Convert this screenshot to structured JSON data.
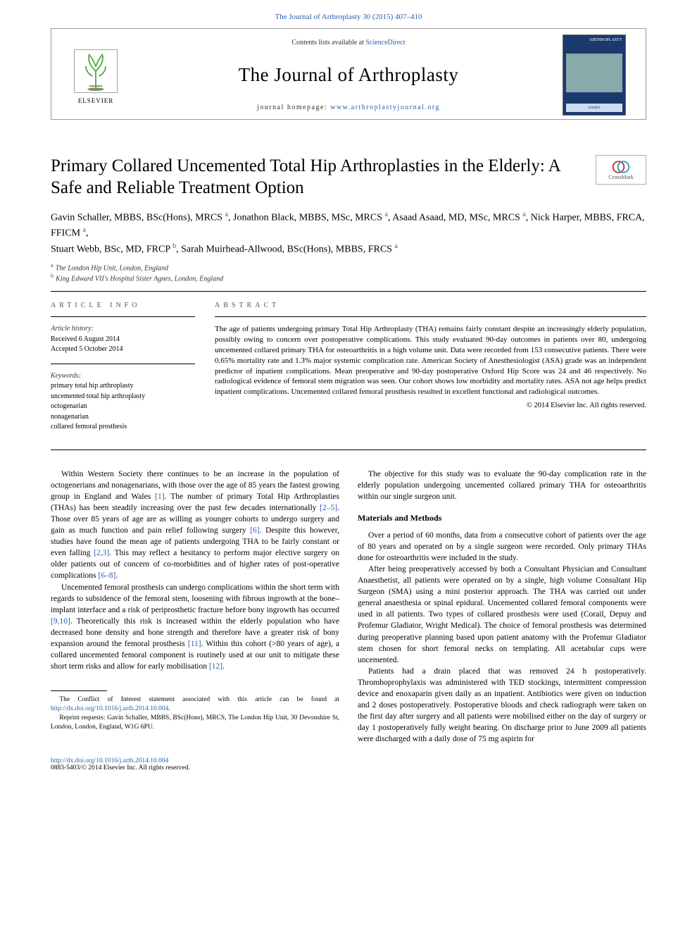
{
  "header": {
    "top_link": "The Journal of Arthroplasty 30 (2015) 407–410",
    "contents": "Contents lists available at ",
    "contents_link": "ScienceDirect",
    "journal_name": "The Journal of Arthroplasty",
    "homepage_label": "journal homepage: ",
    "homepage_url": "www.arthroplastyjournal.org",
    "elsevier": "ELSEVIER",
    "cover_title": "ARTHROPLASTY",
    "cover_foot": "AAHKS"
  },
  "article": {
    "title": "Primary Collared Uncemented Total Hip Arthroplasties in the Elderly: A Safe and Reliable Treatment Option",
    "crossmark": "CrossMark",
    "authors_html": "Gavin Schaller, MBBS, BSc(Hons), MRCS <sup>a</sup>, Jonathon Black, MBBS, MSc, MRCS <sup>a</sup>, Asaad Asaad, MD, MSc, MRCS <sup>a</sup>, Nick Harper, MBBS, FRCA, FFICM <sup>a</sup>,<br>Stuart Webb, BSc, MD, FRCP <sup>b</sup>, Sarah Muirhead-Allwood, BSc(Hons), MBBS, FRCS <sup>a</sup>",
    "affiliations": [
      {
        "sup": "a",
        "text": "The London Hip Unit, London, England"
      },
      {
        "sup": "b",
        "text": "King Edward VII's Hospital Sister Agnes, London, England"
      }
    ],
    "info_heading": "article info",
    "abstract_heading": "abstract",
    "history_label": "Article history:",
    "received": "Received 6 August 2014",
    "accepted": "Accepted 5 October 2014",
    "keywords_label": "Keywords:",
    "keywords": [
      "primary total hip arthroplasty",
      "uncemented total hip arthroplasty",
      "octogenarian",
      "nonagenarian",
      "collared femoral prosthesis"
    ],
    "abstract": "The age of patients undergoing primary Total Hip Arthroplasty (THA) remains fairly constant despite an increasingly elderly population, possibly owing to concern over postoperative complications. This study evaluated 90-day outcomes in patients over 80, undergoing uncemented collared primary THA for osteoarthritis in a high volume unit. Data were recorded from 153 consecutive patients. There were 0.65% mortality rate and 1.3% major systemic complication rate. American Society of Anesthesiologist (ASA) grade was an independent predictor of inpatient complications. Mean preoperative and 90-day postoperative Oxford Hip Score was 24 and 46 respectively. No radiological evidence of femoral stem migration was seen. Our cohort shows low morbidity and mortality rates. ASA not age helps predict inpatient complications. Uncemented collared femoral prosthesis resulted in excellent functional and radiological outcomes.",
    "copyright": "© 2014 Elsevier Inc. All rights reserved."
  },
  "body": {
    "p1a": "Within Western Society there continues to be an increase in the population of octogenerians and nonagenarians, with those over the age of 85 years the fastest growing group in England and Wales ",
    "r1": "[1]",
    "p1b": ". The number of primary Total Hip Arthroplasties (THAs) has been steadily increasing over the past few decades internationally ",
    "r2": "[2–5]",
    "p1c": ". Those over 85 years of age are as willing as younger cohorts to undergo surgery and gain as much function and pain relief following surgery ",
    "r3": "[6]",
    "p1d": ". Despite this however, studies have found the mean age of patients undergoing THA to be fairly constant or even falling ",
    "r4": "[2,3]",
    "p1e": ". This may reflect a hesitancy to perform major elective surgery on older patients out of concern of co-morbidities and of higher rates of post-operative complications ",
    "r5": "[6–8]",
    "p1f": ".",
    "p2a": "Uncemented femoral prosthesis can undergo complications within the short term with regards to subsidence of the femoral stem, loosening with fibrous ingrowth at the bone–implant interface and a risk of periprosthetic fracture before bony ingrowth has occurred ",
    "r6": "[9,10]",
    "p2b": ". Theoretically this risk is increased within the elderly population who have decreased bone density and bone strength and therefore have a greater risk of bony expansion around the femoral prosthesis ",
    "r7": "[11]",
    "p2c": ". Within this cohort (>80 years of age), a collared uncemented femoral component is routinely used at our unit to mitigate these short term risks and allow for early mobilisation ",
    "r8": "[12]",
    "p2d": ".",
    "p3": "The objective for this study was to evaluate the 90-day complication rate in the elderly population undergoing uncemented collared primary THA for osteoarthritis within our single surgeon unit.",
    "mm_heading": "Materials and Methods",
    "p4": "Over a period of 60 months, data from a consecutive cohort of patients over the age of 80 years and operated on by a single surgeon were recorded. Only primary THAs done for osteoarthritis were included in the study.",
    "p5": "After being preoperatively accessed by both a Consultant Physician and Consultant Anaesthetist, all patients were operated on by a single, high volume Consultant Hip Surgeon (SMA) using a mini posterior approach. The THA was carried out under general anaesthesia or spinal epidural. Uncemented collared femoral components were used in all patients. Two types of collared prosthesis were used (Corail, Depuy and Profemur Gladiator, Wright Medical). The choice of femoral prosthesis was determined during preoperative planning based upon patient anatomy with the Profemur Gladiator stem chosen for short femoral necks on templating. All acetabular cups were uncemented.",
    "p6": "Patients had a drain placed that was removed 24 h postoperatively. Thromboprophylaxis was administered with TED stockings, intermittent compression device and enoxaparin given daily as an inpatient. Antibiotics were given on induction and 2 doses postoperatively. Postoperative bloods and check radiograph were taken on the first day after surgery and all patients were mobilised either on the day of surgery or day 1 postoperatively fully weight bearing. On discharge prior to June 2009 all patients were discharged with a daily dose of 75 mg aspirin for"
  },
  "footnotes": {
    "conflict_a": "The Conflict of Interest statement associated with this article can be found at ",
    "conflict_link": "http://dx.doi.org/10.1016/j.arth.2014.10.004",
    "conflict_b": ".",
    "reprint": "Reprint requests: Gavin Schaller, MBBS, BSc(Hons), MRCS, The London Hip Unit, 30 Devonshire St, London, London, England, W1G 6PU."
  },
  "bottom": {
    "doi": "http://dx.doi.org/10.1016/j.arth.2014.10.004",
    "issn": "0883-5403/© 2014 Elsevier Inc. All rights reserved."
  },
  "colors": {
    "link": "#2a5db0",
    "text": "#000000",
    "muted": "#555555",
    "border": "#000000"
  }
}
